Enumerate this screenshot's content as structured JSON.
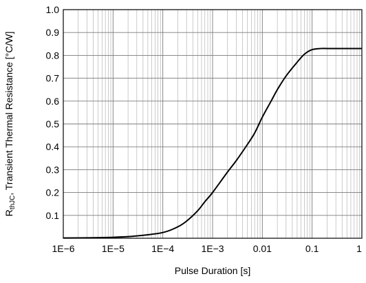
{
  "chart_data": {
    "type": "line",
    "xscale": "log",
    "xlabel": "Pulse Duration [s]",
    "ylabel_main": "R",
    "ylabel_sub": "thJC",
    "ylabel_rest": ", Transient Thermal Resistance [°C/W]",
    "xlim": [
      1e-06,
      1
    ],
    "ylim": [
      0,
      1.0
    ],
    "grid": true,
    "xticks": [
      {
        "value": 1e-06,
        "label": "1E−6"
      },
      {
        "value": 1e-05,
        "label": "1E−5"
      },
      {
        "value": 0.0001,
        "label": "1E−4"
      },
      {
        "value": 0.001,
        "label": "1E−3"
      },
      {
        "value": 0.01,
        "label": "0.01"
      },
      {
        "value": 0.1,
        "label": "0.1"
      },
      {
        "value": 1,
        "label": "1"
      }
    ],
    "yticks": [
      {
        "value": 0.1,
        "label": "0.1"
      },
      {
        "value": 0.2,
        "label": "0.2"
      },
      {
        "value": 0.3,
        "label": "0.3"
      },
      {
        "value": 0.4,
        "label": "0.4"
      },
      {
        "value": 0.5,
        "label": "0.5"
      },
      {
        "value": 0.6,
        "label": "0.6"
      },
      {
        "value": 0.7,
        "label": "0.7"
      },
      {
        "value": 0.8,
        "label": "0.8"
      },
      {
        "value": 0.9,
        "label": "0.9"
      },
      {
        "value": 1.0,
        "label": "1.0"
      }
    ],
    "series": [
      {
        "x": [
          1e-06,
          3e-06,
          1e-05,
          3e-05,
          0.0001,
          0.0002,
          0.0003,
          0.0005,
          0.0007,
          0.001,
          0.002,
          0.003,
          0.005,
          0.007,
          0.01,
          0.015,
          0.02,
          0.03,
          0.05,
          0.07,
          0.1,
          0.15,
          0.2,
          0.3,
          0.5,
          1
        ],
        "y": [
          0.001,
          0.002,
          0.004,
          0.01,
          0.025,
          0.05,
          0.075,
          0.12,
          0.16,
          0.2,
          0.29,
          0.34,
          0.41,
          0.46,
          0.53,
          0.6,
          0.65,
          0.71,
          0.77,
          0.805,
          0.825,
          0.83,
          0.83,
          0.83,
          0.83,
          0.83
        ]
      }
    ]
  }
}
